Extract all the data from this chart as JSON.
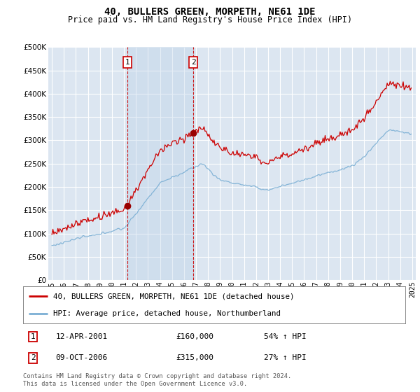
{
  "title": "40, BULLERS GREEN, MORPETH, NE61 1DE",
  "subtitle": "Price paid vs. HM Land Registry's House Price Index (HPI)",
  "legend_line1": "40, BULLERS GREEN, MORPETH, NE61 1DE (detached house)",
  "legend_line2": "HPI: Average price, detached house, Northumberland",
  "footnote": "Contains HM Land Registry data © Crown copyright and database right 2024.\nThis data is licensed under the Open Government Licence v3.0.",
  "sale1_label": "1",
  "sale1_date": "12-APR-2001",
  "sale1_price": "£160,000",
  "sale1_hpi": "54% ↑ HPI",
  "sale2_label": "2",
  "sale2_date": "09-OCT-2006",
  "sale2_price": "£315,000",
  "sale2_hpi": "27% ↑ HPI",
  "hpi_color": "#7bafd4",
  "price_color": "#cc0000",
  "sale_marker_color": "#990000",
  "background_color": "#dce6f1",
  "shade_color": "#c5d8ee",
  "grid_color": "#ffffff",
  "ylim": [
    0,
    500000
  ],
  "yticks": [
    0,
    50000,
    100000,
    150000,
    200000,
    250000,
    300000,
    350000,
    400000,
    450000,
    500000
  ],
  "sale1_x": 2001.28,
  "sale2_x": 2006.78,
  "xlim_left": 1994.7,
  "xlim_right": 2025.3
}
